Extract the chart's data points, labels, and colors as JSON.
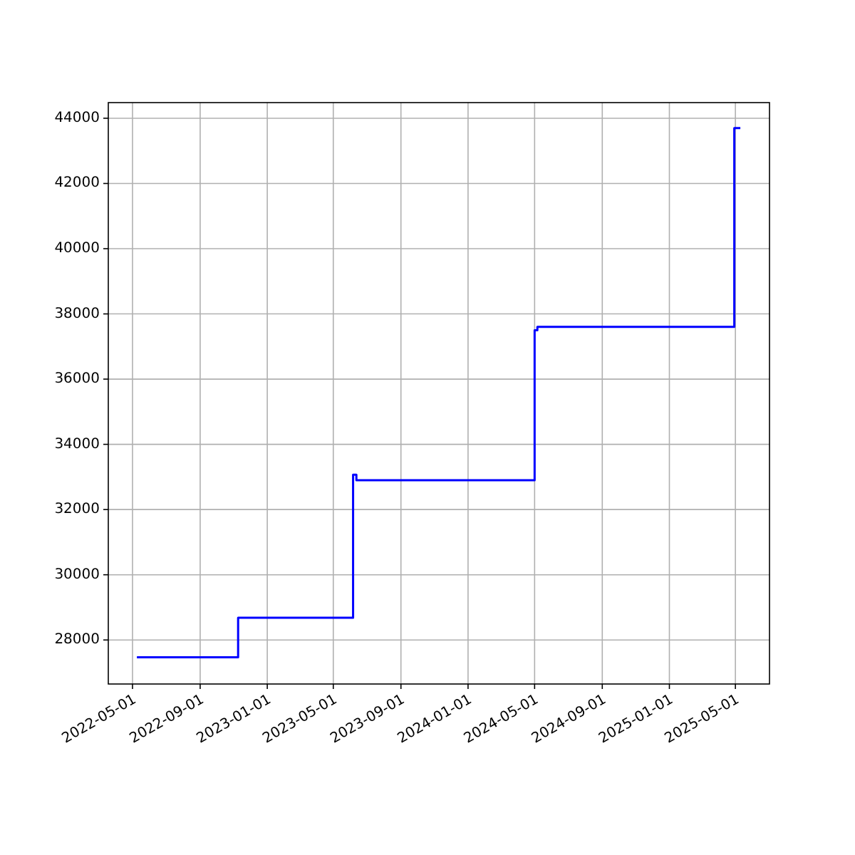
{
  "chart_data": {
    "type": "step",
    "x": [
      "2022-05-09",
      "2022-11-09",
      "2023-06-06",
      "2023-06-12",
      "2024-05-01",
      "2024-05-06",
      "2025-04-29",
      "2025-05-10"
    ],
    "series": [
      {
        "color": "#0000ff",
        "values": [
          27470,
          28680,
          33070,
          32900,
          37500,
          37600,
          43700,
          43700
        ]
      }
    ],
    "xlim": [
      "2022-03-18",
      "2025-07-02"
    ],
    "xticks": [
      "2022-05-01",
      "2022-09-01",
      "2023-01-01",
      "2023-05-01",
      "2023-09-01",
      "2024-01-01",
      "2024-05-01",
      "2024-09-01",
      "2025-01-01",
      "2025-05-01"
    ],
    "ylim": [
      26650,
      44480
    ],
    "yticks": [
      28000,
      30000,
      32000,
      34000,
      36000,
      38000,
      40000,
      42000,
      44000
    ],
    "grid": true
  }
}
